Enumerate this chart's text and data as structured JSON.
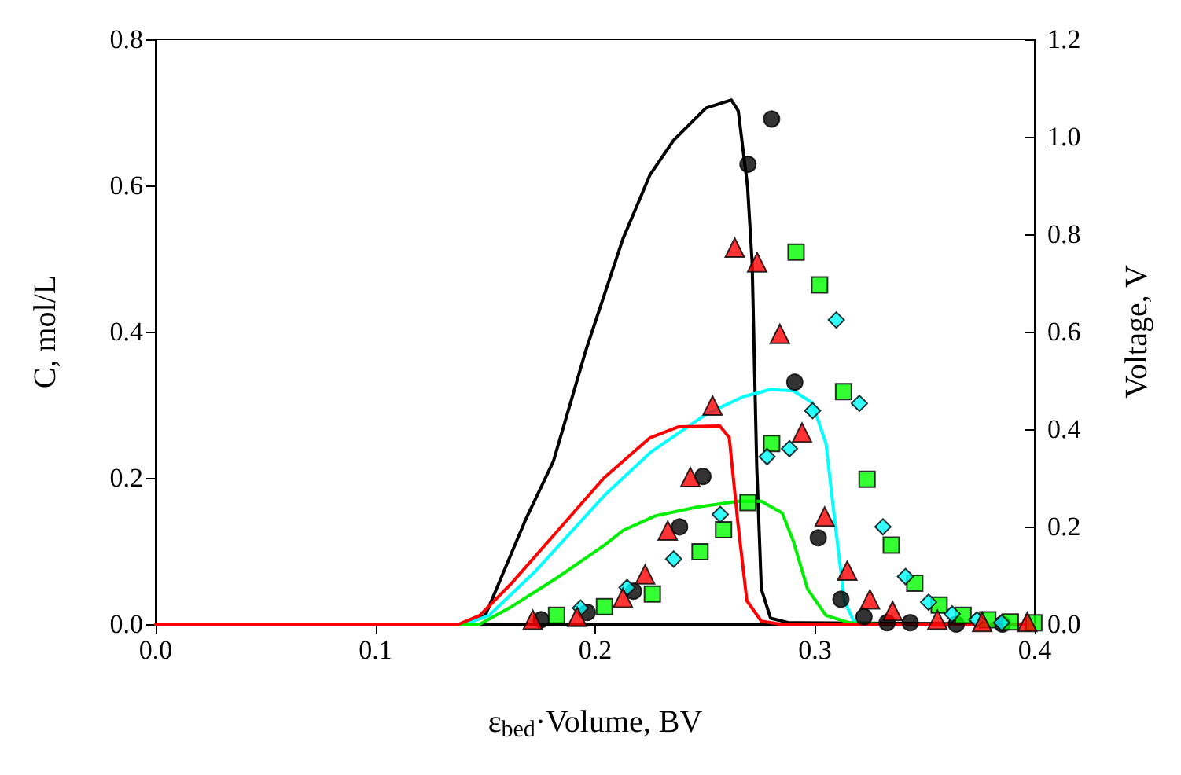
{
  "chart_data": {
    "type": "line",
    "xlabel": "ε$_{bed}$·Volume, BV",
    "ylabel": "C, mol/L",
    "y2label": "Voltage, V",
    "xlim": [
      0,
      0.4
    ],
    "xticks": [
      {
        "value": 0,
        "label": "0.0"
      },
      0.1,
      0.2,
      0.3,
      0.4
    ],
    "ylim": [
      0,
      0.8
    ],
    "yticks": [
      {
        "value": 0,
        "label": "0.0"
      },
      {
        "value": 0.2,
        "label": "0.2"
      },
      {
        "value": 0.4,
        "label": "0.4"
      },
      {
        "value": 0.6,
        "label": "0.6"
      },
      {
        "value": 0.8,
        "label": "0.8"
      }
    ],
    "y2lim": [
      0,
      1.2
    ],
    "y2ticks": [
      {
        "value": 0,
        "label": "0.0"
      },
      {
        "value": 0.2,
        "label": "0.2"
      },
      {
        "value": 0.4,
        "label": "0.4"
      },
      {
        "value": 0.6,
        "label": "0.6"
      },
      {
        "value": 0.8,
        "label": "0.8"
      },
      {
        "value": 1.0,
        "label": "1.0"
      },
      {
        "value": 1.2,
        "label": "1.2"
      }
    ],
    "line_style": "solid",
    "series": [
      {
        "type": "line",
        "marker": "none",
        "color": "#000000",
        "x": [
          0,
          0.139,
          0.15,
          0.1685,
          0.181,
          0.1958,
          0.2126,
          0.225,
          0.2357,
          0.2504,
          0.262,
          0.2651,
          0.2693,
          0.2714,
          0.2735,
          0.2756,
          0.2798,
          0.288,
          0.4
        ],
        "values": [
          0,
          0,
          0.012,
          0.144,
          0.223,
          0.375,
          0.527,
          0.615,
          0.662,
          0.706,
          0.717,
          0.702,
          0.599,
          0.495,
          0.215,
          0.048,
          0.008,
          0.002,
          0
        ]
      },
      {
        "type": "line",
        "marker": "none",
        "color": "#00ffff",
        "x": [
          0,
          0.141,
          0.1517,
          0.1727,
          0.2042,
          0.2252,
          0.2504,
          0.2672,
          0.2798,
          0.2903,
          0.2987,
          0.305,
          0.3092,
          0.3134,
          0.3176,
          0.3218,
          0.4
        ],
        "values": [
          0,
          0,
          0.012,
          0.072,
          0.176,
          0.235,
          0.287,
          0.311,
          0.321,
          0.319,
          0.303,
          0.247,
          0.136,
          0.032,
          0.004,
          0,
          0
        ]
      },
      {
        "type": "line",
        "marker": "none",
        "color": "#00ee00",
        "x": [
          0,
          0.1475,
          0.162,
          0.183,
          0.2042,
          0.2126,
          0.2273,
          0.2462,
          0.2651,
          0.2756,
          0.2851,
          0.2903,
          0.2966,
          0.305,
          0.3155,
          0.33,
          0.4
        ],
        "values": [
          0,
          0,
          0.024,
          0.064,
          0.108,
          0.128,
          0.148,
          0.16,
          0.168,
          0.168,
          0.152,
          0.112,
          0.048,
          0.012,
          0.002,
          0,
          0
        ]
      },
      {
        "type": "line",
        "marker": "none",
        "color": "#ff0000",
        "x": [
          0,
          0.138,
          0.1475,
          0.162,
          0.183,
          0.204,
          0.225,
          0.238,
          0.2567,
          0.261,
          0.265,
          0.269,
          0.2756,
          0.284,
          0.4
        ],
        "values": [
          0,
          0,
          0.012,
          0.056,
          0.128,
          0.2,
          0.255,
          0.27,
          0.271,
          0.255,
          0.136,
          0.032,
          0.004,
          0,
          0
        ]
      },
      {
        "type": "scatter",
        "marker": "circle",
        "color": "#000000",
        "x": [
          0.1754,
          0.1964,
          0.2174,
          0.2384,
          0.249,
          0.2695,
          0.2803,
          0.2908,
          0.3015,
          0.3118,
          0.3223,
          0.3328,
          0.3433,
          0.3643,
          0.3853
        ],
        "values": [
          0.006,
          0.016,
          0.045,
          0.133,
          0.202,
          0.629,
          0.691,
          0.331,
          0.118,
          0.034,
          0.01,
          0.002,
          0.002,
          0,
          0
        ]
      },
      {
        "type": "scatter",
        "marker": "square",
        "color": "#00ff00",
        "x": [
          0.1824,
          0.2042,
          0.226,
          0.2477,
          0.2584,
          0.2695,
          0.2803,
          0.2914,
          0.3021,
          0.313,
          0.3237,
          0.3347,
          0.3454,
          0.3565,
          0.3674,
          0.3786,
          0.3889,
          0.3996
        ],
        "values": [
          0.012,
          0.024,
          0.041,
          0.099,
          0.129,
          0.166,
          0.247,
          0.509,
          0.464,
          0.318,
          0.198,
          0.108,
          0.056,
          0.026,
          0.012,
          0.006,
          0.003,
          0.002
        ]
      },
      {
        "type": "scatter",
        "marker": "diamond",
        "color": "#00ffff",
        "x": [
          0.1933,
          0.2145,
          0.2357,
          0.2569,
          0.2782,
          0.2884,
          0.2989,
          0.3097,
          0.3202,
          0.3309,
          0.3412,
          0.3517,
          0.3624,
          0.3737,
          0.3849
        ],
        "values": [
          0.022,
          0.05,
          0.089,
          0.15,
          0.229,
          0.24,
          0.292,
          0.416,
          0.302,
          0.133,
          0.065,
          0.03,
          0.014,
          0.006,
          0.002
        ]
      },
      {
        "type": "scatter",
        "marker": "triangle",
        "color": "#ff0000",
        "x": [
          0.1716,
          0.1918,
          0.2126,
          0.2227,
          0.233,
          0.2433,
          0.2534,
          0.2635,
          0.2737,
          0.284,
          0.2941,
          0.3044,
          0.3147,
          0.325,
          0.3353,
          0.3557,
          0.3761,
          0.3966
        ],
        "values": [
          0.006,
          0.01,
          0.036,
          0.068,
          0.128,
          0.201,
          0.299,
          0.515,
          0.495,
          0.397,
          0.262,
          0.147,
          0.073,
          0.034,
          0.018,
          0.006,
          0.003,
          0.003
        ]
      }
    ]
  }
}
